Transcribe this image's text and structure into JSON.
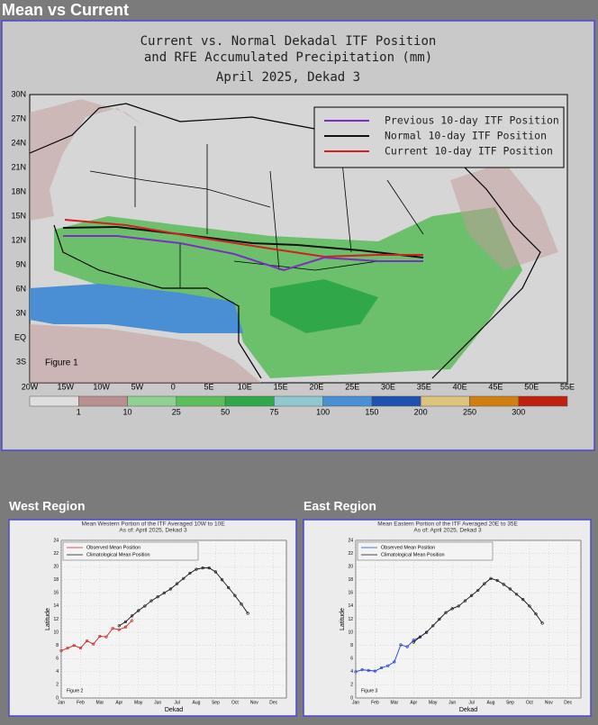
{
  "header": {
    "title": "Mean vs Current"
  },
  "map": {
    "title": [
      "Current vs. Normal Dekadal ITF Position",
      "and RFE Accumulated Precipitation (mm)",
      "April 2025, Dekad 3"
    ],
    "legend": [
      "Previous 10-day ITF Position",
      "Normal 10-day ITF Position",
      "Current 10-day ITF Position"
    ],
    "legend_colors": [
      "#7a2fc0",
      "#111111",
      "#d02020"
    ],
    "lat_labels": [
      "30N",
      "27N",
      "24N",
      "21N",
      "18N",
      "15N",
      "12N",
      "9N",
      "6N",
      "3N",
      "EQ",
      "3S"
    ],
    "lon_labels": [
      "20W",
      "15W",
      "10W",
      "5W",
      "0",
      "5E",
      "10E",
      "15E",
      "20E",
      "25E",
      "30E",
      "35E",
      "40E",
      "45E",
      "50E",
      "55E"
    ],
    "figure_label": "Figure 1",
    "colorbar": {
      "labels": [
        "1",
        "10",
        "25",
        "50",
        "75",
        "100",
        "150",
        "200",
        "250",
        "300"
      ],
      "colors": [
        "#dedede",
        "#b89090",
        "#90d090",
        "#5cbf5c",
        "#30a84a",
        "#90c8d0",
        "#4a8ed4",
        "#2050b0",
        "#dcc47c",
        "#d08010",
        "#c02010"
      ]
    }
  },
  "west": {
    "heading": "West Region",
    "chart": {
      "type": "line",
      "title": [
        "Mean Western Portion of the ITF Averaged 10W to 10E",
        "As of: April 2025, Dekad 3"
      ],
      "x_label": "Dekad",
      "y_label": "Latitude",
      "figure_label": "Figure 2",
      "xlim": [
        1,
        36
      ],
      "ylim": [
        0,
        24
      ],
      "xticks": [
        {
          "value": 1,
          "label": "Jan"
        },
        {
          "value": 4,
          "label": "Feb"
        },
        {
          "value": 7,
          "label": "Mar"
        },
        {
          "value": 10,
          "label": "Apr"
        },
        {
          "value": 13,
          "label": "May"
        },
        {
          "value": 16,
          "label": "Jun"
        },
        {
          "value": 19,
          "label": "Jul"
        },
        {
          "value": 22,
          "label": "Aug"
        },
        {
          "value": 25,
          "label": "Sep"
        },
        {
          "value": 28,
          "label": "Oct"
        },
        {
          "value": 31,
          "label": "Nov"
        },
        {
          "value": 34,
          "label": "Dec"
        }
      ],
      "yticks": [
        0,
        2,
        4,
        6,
        8,
        10,
        12,
        14,
        16,
        18,
        20,
        22,
        24
      ],
      "series": [
        {
          "name": "Observed Mean Position",
          "color": "#d02020",
          "x": [
            1,
            2,
            3,
            4,
            5,
            6,
            7,
            8,
            9,
            10,
            11,
            12
          ],
          "values": [
            7.2,
            7.6,
            8.0,
            7.6,
            8.7,
            8.2,
            9.4,
            9.3,
            10.6,
            10.4,
            10.8,
            11.8
          ]
        },
        {
          "name": "Climatological Mean Position",
          "color": "#111111",
          "x": [
            10,
            11,
            12,
            13,
            14,
            15,
            16,
            17,
            18,
            19,
            20,
            21,
            22,
            23,
            24,
            25,
            26,
            27,
            28,
            29,
            30
          ],
          "values": [
            11.0,
            11.6,
            12.5,
            13.3,
            14.0,
            14.8,
            15.4,
            16.0,
            16.6,
            17.4,
            18.2,
            19.0,
            19.6,
            19.8,
            19.8,
            19.2,
            18.0,
            16.8,
            15.6,
            14.3,
            12.9
          ]
        }
      ]
    }
  },
  "east": {
    "heading": "East Region",
    "chart": {
      "type": "line",
      "title": [
        "Mean Eastern Portion of the ITF Averaged 20E to 35E",
        "As of: April 2025, Dekad 3"
      ],
      "x_label": "Dekad",
      "y_label": "Latitude",
      "figure_label": "Figure 3",
      "xlim": [
        1,
        36
      ],
      "ylim": [
        0,
        24
      ],
      "xticks": [
        {
          "value": 1,
          "label": "Jan"
        },
        {
          "value": 4,
          "label": "Feb"
        },
        {
          "value": 7,
          "label": "Mar"
        },
        {
          "value": 10,
          "label": "Apr"
        },
        {
          "value": 13,
          "label": "May"
        },
        {
          "value": 16,
          "label": "Jun"
        },
        {
          "value": 19,
          "label": "Jul"
        },
        {
          "value": 22,
          "label": "Aug"
        },
        {
          "value": 25,
          "label": "Sep"
        },
        {
          "value": 28,
          "label": "Oct"
        },
        {
          "value": 31,
          "label": "Nov"
        },
        {
          "value": 34,
          "label": "Dec"
        }
      ],
      "yticks": [
        0,
        2,
        4,
        6,
        8,
        10,
        12,
        14,
        16,
        18,
        20,
        22,
        24
      ],
      "series": [
        {
          "name": "Observed Mean Position",
          "color": "#2040d0",
          "x": [
            1,
            2,
            3,
            4,
            5,
            6,
            7,
            8,
            9,
            10,
            11,
            12
          ],
          "values": [
            4.0,
            4.3,
            4.2,
            4.1,
            4.6,
            4.9,
            5.5,
            8.1,
            7.8,
            8.8,
            9.3,
            10.0
          ]
        },
        {
          "name": "Climatological Mean Position",
          "color": "#111111",
          "x": [
            10,
            11,
            12,
            13,
            14,
            15,
            16,
            17,
            18,
            19,
            20,
            21,
            22,
            23,
            24,
            25,
            26,
            27,
            28,
            29,
            30
          ],
          "values": [
            8.5,
            9.3,
            10.0,
            11.0,
            12.0,
            13.0,
            13.6,
            14.0,
            14.8,
            15.6,
            16.4,
            17.4,
            18.2,
            17.9,
            17.3,
            16.6,
            15.8,
            15.0,
            14.0,
            12.8,
            11.4
          ]
        }
      ]
    }
  }
}
